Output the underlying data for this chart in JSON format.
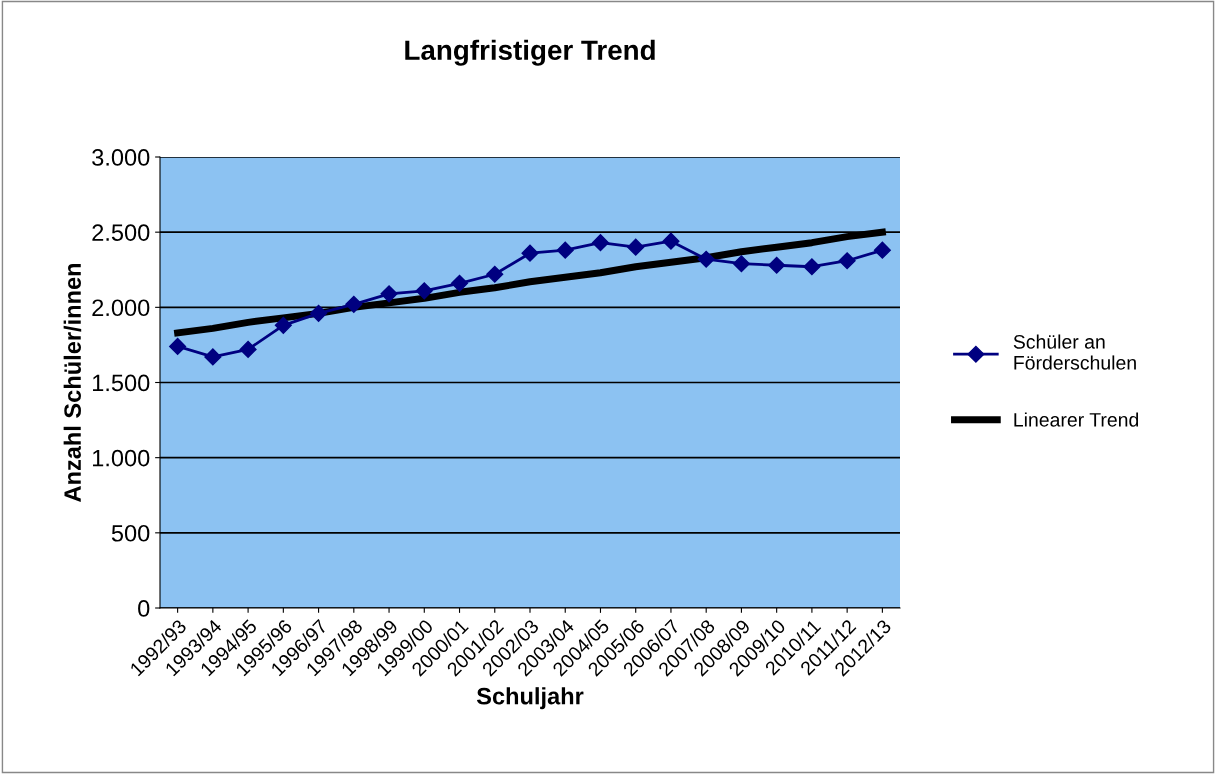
{
  "chart_data": {
    "type": "line",
    "title": "Langfristiger Trend",
    "xlabel": "Schuljahr",
    "ylabel": "Anzahl Schüler/innen",
    "categories": [
      "1992/93",
      "1993/94",
      "1994/95",
      "1995/96",
      "1996/97",
      "1997/98",
      "1998/99",
      "1999/00",
      "2000/01",
      "2001/02",
      "2002/03",
      "2003/04",
      "2004/05",
      "2005/06",
      "2006/07",
      "2007/08",
      "2008/09",
      "2009/10",
      "2010/11",
      "2011/12",
      "2012/13"
    ],
    "series": [
      {
        "name": "Schüler an\nFörderschulen",
        "color": "#000080",
        "marker": "diamond",
        "values": [
          1740,
          1670,
          1720,
          1880,
          1960,
          2020,
          2090,
          2110,
          2160,
          2220,
          2360,
          2380,
          2430,
          2400,
          2440,
          2320,
          2290,
          2280,
          2270,
          2310,
          2380
        ]
      },
      {
        "name": "Linearer Trend",
        "color": "#000000",
        "type": "line",
        "values": [
          1830,
          1860,
          1900,
          1930,
          1960,
          2000,
          2030,
          2060,
          2100,
          2130,
          2170,
          2200,
          2230,
          2270,
          2300,
          2330,
          2370,
          2400,
          2430,
          2470,
          2500
        ]
      }
    ],
    "ylim": [
      0,
      3000
    ],
    "yticks": [
      {
        "value": 0,
        "label": "0"
      },
      {
        "value": 500,
        "label": "500"
      },
      {
        "value": 1000,
        "label": "1.000"
      },
      {
        "value": 1500,
        "label": "1.500"
      },
      {
        "value": 2000,
        "label": "2.000"
      },
      {
        "value": 2500,
        "label": "2.500"
      },
      {
        "value": 3000,
        "label": "3.000"
      }
    ],
    "grid": "y",
    "legend": "right"
  }
}
